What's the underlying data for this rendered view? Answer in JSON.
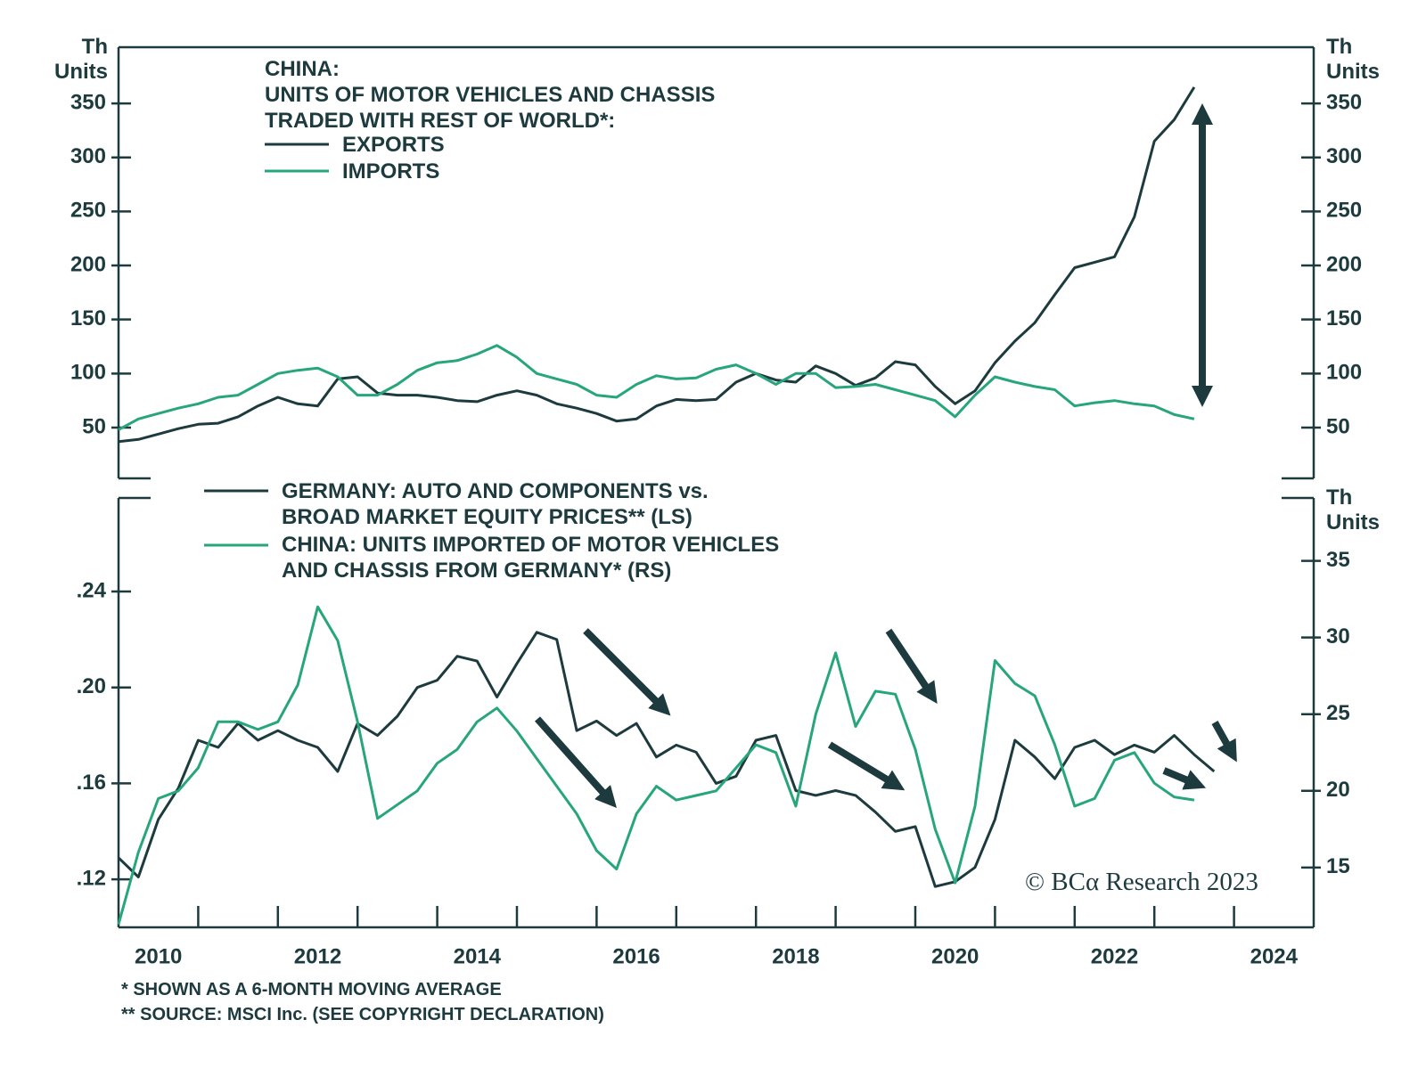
{
  "chart_data": [
    {
      "type": "line",
      "title": "CHINA:\nUNITS OF MOTOR VEHICLES AND CHASSIS\nTRADED WITH REST OF WORLD*:",
      "y_label": "Th\nUnits",
      "y_label_right": "Th\nUnits",
      "x": [
        2010,
        2010.25,
        2010.5,
        2010.75,
        2011,
        2011.25,
        2011.5,
        2011.75,
        2012,
        2012.25,
        2012.5,
        2012.75,
        2013,
        2013.25,
        2013.5,
        2013.75,
        2014,
        2014.25,
        2014.5,
        2014.75,
        2015,
        2015.25,
        2015.5,
        2015.75,
        2016,
        2016.25,
        2016.5,
        2016.75,
        2017,
        2017.25,
        2017.5,
        2017.75,
        2018,
        2018.25,
        2018.5,
        2018.75,
        2019,
        2019.25,
        2019.5,
        2019.75,
        2020,
        2020.25,
        2020.5,
        2020.75,
        2021,
        2021.25,
        2021.5,
        2021.75,
        2022,
        2022.25,
        2022.5,
        2022.75,
        2023,
        2023.25,
        2023.5
      ],
      "xlim": [
        2010,
        2025
      ],
      "ylim": [
        3,
        402
      ],
      "yticks": [
        50,
        100,
        150,
        200,
        250,
        300,
        350
      ],
      "series": [
        {
          "name": "EXPORTS",
          "color": "#1d3b3e",
          "values": [
            37,
            39,
            44,
            49,
            53,
            54,
            60,
            70,
            78,
            72,
            70,
            95,
            97,
            82,
            80,
            80,
            78,
            75,
            74,
            80,
            84,
            80,
            72,
            68,
            63,
            56,
            58,
            70,
            76,
            75,
            76,
            92,
            100,
            94,
            92,
            107,
            100,
            89,
            96,
            111,
            108,
            88,
            72,
            84,
            110,
            130,
            147,
            173,
            198,
            203,
            208,
            245,
            315,
            335,
            365
          ]
        },
        {
          "name": "IMPORTS",
          "color": "#27a57b",
          "values": [
            48,
            58,
            63,
            68,
            72,
            78,
            80,
            90,
            100,
            103,
            105,
            97,
            80,
            80,
            90,
            103,
            110,
            112,
            118,
            126,
            115,
            100,
            95,
            90,
            80,
            78,
            90,
            98,
            95,
            96,
            104,
            108,
            100,
            90,
            100,
            100,
            87,
            88,
            90,
            85,
            80,
            75,
            60,
            80,
            97,
            92,
            88,
            85,
            70,
            73,
            75,
            72,
            70,
            62,
            58
          ]
        }
      ]
    },
    {
      "type": "line",
      "y_label_right": "Th\nUnits",
      "x": [
        2010,
        2010.25,
        2010.5,
        2010.75,
        2011,
        2011.25,
        2011.5,
        2011.75,
        2012,
        2012.25,
        2012.5,
        2012.75,
        2013,
        2013.25,
        2013.5,
        2013.75,
        2014,
        2014.25,
        2014.5,
        2014.75,
        2015,
        2015.25,
        2015.5,
        2015.75,
        2016,
        2016.25,
        2016.5,
        2016.75,
        2017,
        2017.25,
        2017.5,
        2017.75,
        2018,
        2018.25,
        2018.5,
        2018.75,
        2019,
        2019.25,
        2019.5,
        2019.75,
        2020,
        2020.25,
        2020.5,
        2020.75,
        2021,
        2021.25,
        2021.5,
        2021.75,
        2022,
        2022.25,
        2022.5,
        2022.75,
        2023,
        2023.25,
        2023.5,
        2023.75
      ],
      "xlim": [
        2010,
        2025
      ],
      "xticks": [
        {
          "value": 2010.5,
          "label": "2010"
        },
        {
          "value": 2012.5,
          "label": "2012"
        },
        {
          "value": 2014.5,
          "label": "2014"
        },
        {
          "value": 2016.5,
          "label": "2016"
        },
        {
          "value": 2018.5,
          "label": "2018"
        },
        {
          "value": 2020.5,
          "label": "2020"
        },
        {
          "value": 2022.5,
          "label": "2022"
        },
        {
          "value": 2024.5,
          "label": "2024"
        }
      ],
      "xtick_marks": [
        2011,
        2012,
        2013,
        2014,
        2015,
        2016,
        2017,
        2018,
        2019,
        2020,
        2021,
        2022,
        2023,
        2024
      ],
      "ylim": [
        0.1,
        0.279
      ],
      "yticks": [
        {
          "value": 0.12,
          "label": ".12"
        },
        {
          "value": 0.16,
          "label": ".16"
        },
        {
          "value": 0.2,
          "label": ".20"
        },
        {
          "value": 0.24,
          "label": ".24"
        }
      ],
      "y2lim": [
        11.1,
        39.1
      ],
      "y2ticks": [
        15,
        20,
        25,
        30,
        35
      ],
      "series": [
        {
          "name": "GERMANY: AUTO AND COMPONENTS vs.\nBROAD MARKET EQUITY PRICES** (LS)",
          "color": "#1d3b3e",
          "values": [
            0.129,
            0.121,
            0.145,
            0.158,
            0.178,
            0.175,
            0.185,
            0.178,
            0.182,
            0.178,
            0.175,
            0.165,
            0.185,
            0.18,
            0.188,
            0.2,
            0.203,
            0.213,
            0.211,
            0.196,
            0.21,
            0.223,
            0.22,
            0.182,
            0.186,
            0.18,
            0.185,
            0.171,
            0.176,
            0.173,
            0.16,
            0.163,
            0.178,
            0.18,
            0.157,
            0.155,
            0.157,
            0.155,
            0.148,
            0.14,
            0.142,
            0.117,
            0.119,
            0.125,
            0.145,
            0.178,
            0.171,
            0.162,
            0.175,
            0.178,
            0.172,
            0.176,
            0.173,
            0.18,
            0.172,
            0.165
          ]
        },
        {
          "name": "CHINA: UNITS IMPORTED OF MOTOR VEHICLES\nAND CHASSIS FROM GERMANY* (RS)",
          "color": "#27a57b",
          "axis": "y2",
          "values": [
            11.3,
            16,
            19.5,
            20,
            21.5,
            24.5,
            24.5,
            24,
            24.5,
            26.9,
            32,
            29.8,
            24.5,
            18.2,
            19.1,
            20,
            21.8,
            22.7,
            24.5,
            25.4,
            23.9,
            22.1,
            20.3,
            18.5,
            16.1,
            14.9,
            18.5,
            20.3,
            19.4,
            19.7,
            20,
            21.5,
            23,
            22.5,
            19,
            25,
            29,
            24.2,
            26.5,
            26.3,
            22.7,
            17.5,
            14,
            19,
            28.5,
            27,
            26.2,
            23,
            19,
            19.5,
            22,
            22.5,
            20.5,
            19.6,
            19.4,
            null
          ]
        }
      ]
    }
  ],
  "footnotes": [
    "*  SHOWN AS A 6-MONTH MOVING AVERAGE",
    "**  SOURCE: MSCI Inc. (SEE COPYRIGHT DECLARATION)"
  ],
  "copyright": "© BCα Research 2023"
}
